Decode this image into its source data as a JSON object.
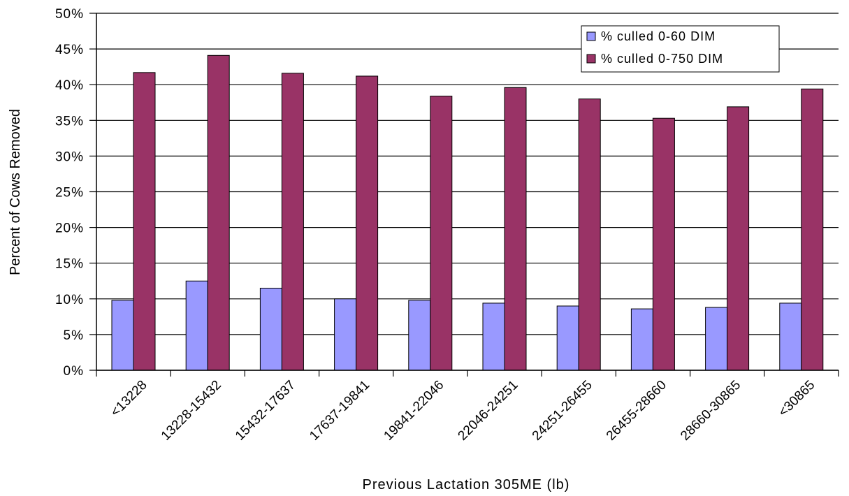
{
  "chart_data": {
    "type": "bar",
    "title": "",
    "xlabel": "Previous Lactation 305ME (lb)",
    "ylabel": "Percent of Cows Removed",
    "ylim": [
      0,
      50
    ],
    "y_ticks": [
      "0%",
      "5%",
      "10%",
      "15%",
      "20%",
      "25%",
      "30%",
      "35%",
      "40%",
      "45%",
      "50%"
    ],
    "grid": true,
    "legend_position": "top-right",
    "categories": [
      "<13228",
      "13228-15432",
      "15432-17637",
      "17637-19841",
      "19841-22046",
      "22046-24251",
      "24251-26455",
      "26455-28660",
      "28660-30865",
      "<30865"
    ],
    "series": [
      {
        "name": "% culled 0-60 DIM",
        "color": "#9999ff",
        "values": [
          9.8,
          12.5,
          11.5,
          10.0,
          9.8,
          9.4,
          9.0,
          8.6,
          8.8,
          9.4
        ]
      },
      {
        "name": "% culled 0-750 DIM",
        "color": "#993366",
        "values": [
          41.7,
          44.1,
          41.6,
          41.2,
          38.4,
          39.6,
          38.0,
          35.3,
          36.9,
          39.4
        ]
      }
    ]
  }
}
